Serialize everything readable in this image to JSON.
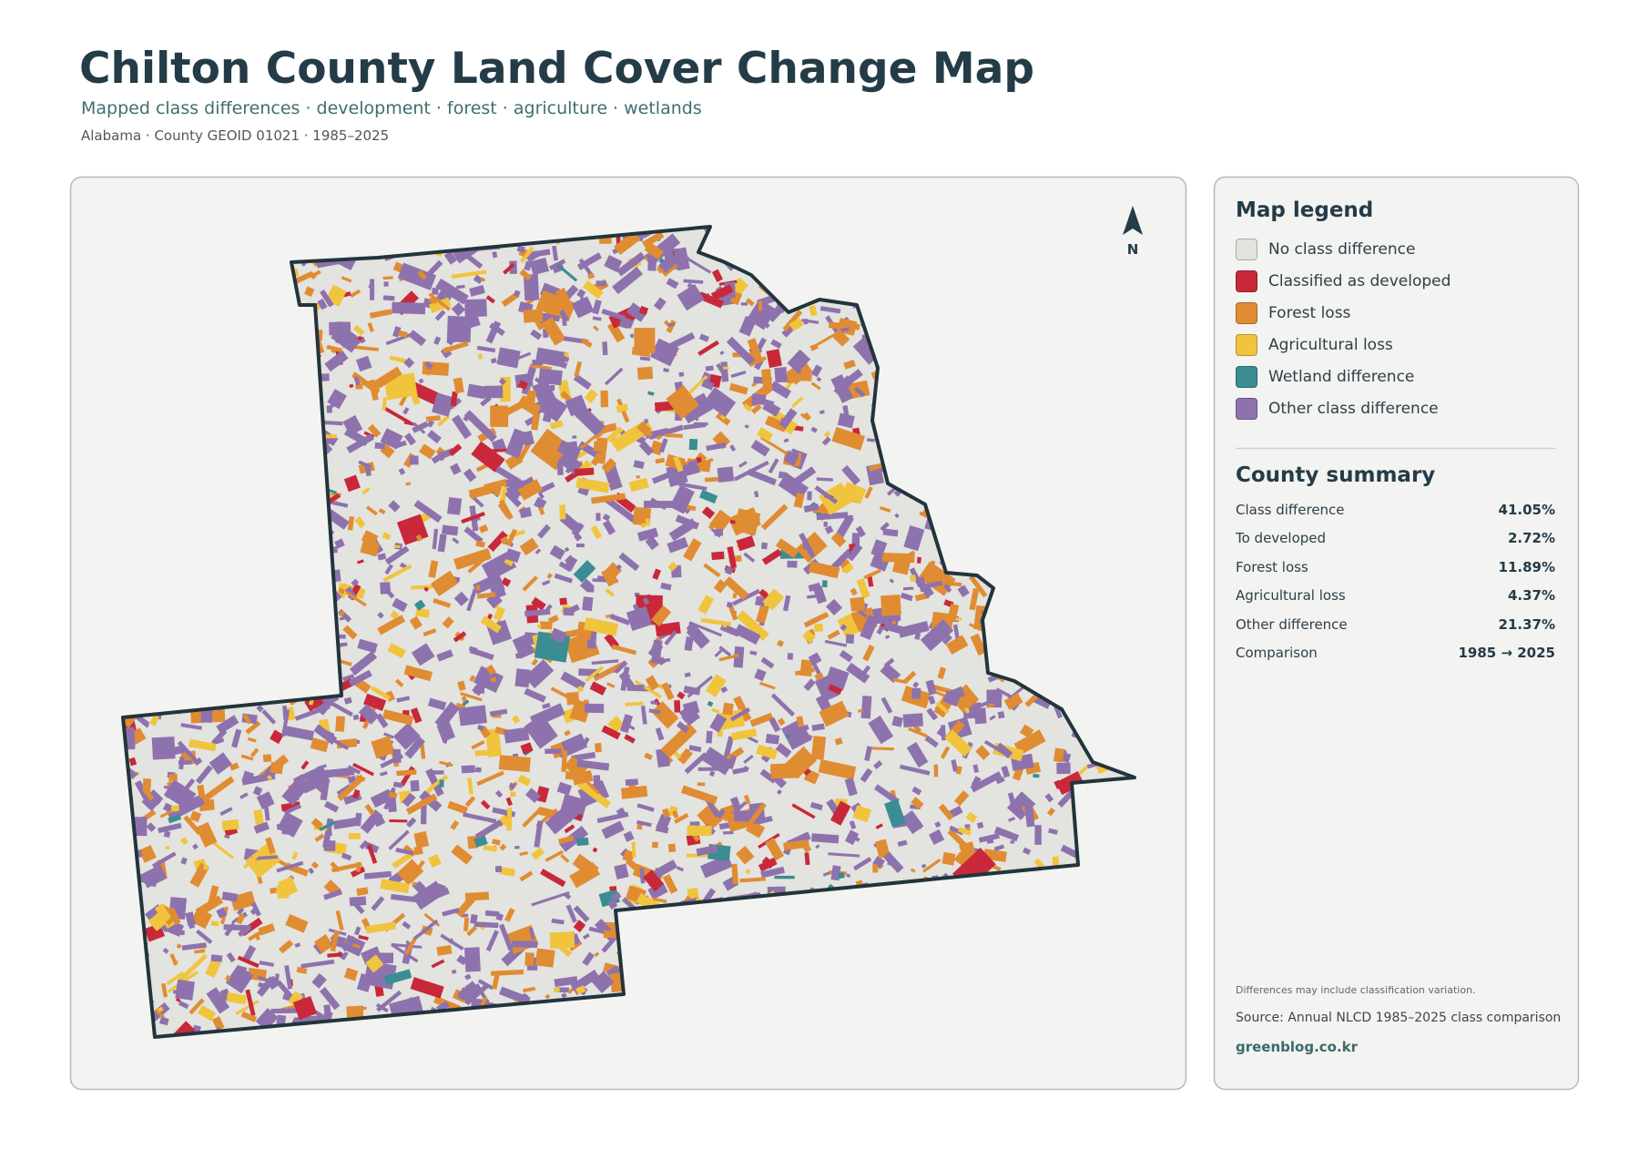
{
  "header": {
    "title": "Chilton County Land Cover Change Map",
    "subtitle": "Mapped class differences · development · forest · agriculture · wetlands",
    "meta": "Alabama · County GEOID 01021 · 1985–2025"
  },
  "map": {
    "north_label": "N"
  },
  "legend": {
    "title": "Map legend",
    "items": [
      {
        "label": "No class difference",
        "color": "#e3e3df"
      },
      {
        "label": "Classified as developed",
        "color": "#c8283a"
      },
      {
        "label": "Forest loss",
        "color": "#e08c33"
      },
      {
        "label": "Agricultural loss",
        "color": "#f0c43c"
      },
      {
        "label": "Wetland difference",
        "color": "#3a8d93"
      },
      {
        "label": "Other class difference",
        "color": "#8e72ad"
      }
    ]
  },
  "summary": {
    "title": "County summary",
    "rows": [
      {
        "label": "Class difference",
        "value": "41.05%"
      },
      {
        "label": "To developed",
        "value": "2.72%"
      },
      {
        "label": "Forest loss",
        "value": "11.89%"
      },
      {
        "label": "Agricultural loss",
        "value": "4.37%"
      },
      {
        "label": "Other difference",
        "value": "21.37%"
      },
      {
        "label": "Comparison",
        "value": "1985 → 2025"
      }
    ]
  },
  "footer": {
    "note": "Differences may include classification variation.",
    "source": "Source: Annual NLCD 1985–2025 class comparison",
    "link": "greenblog.co.kr"
  }
}
